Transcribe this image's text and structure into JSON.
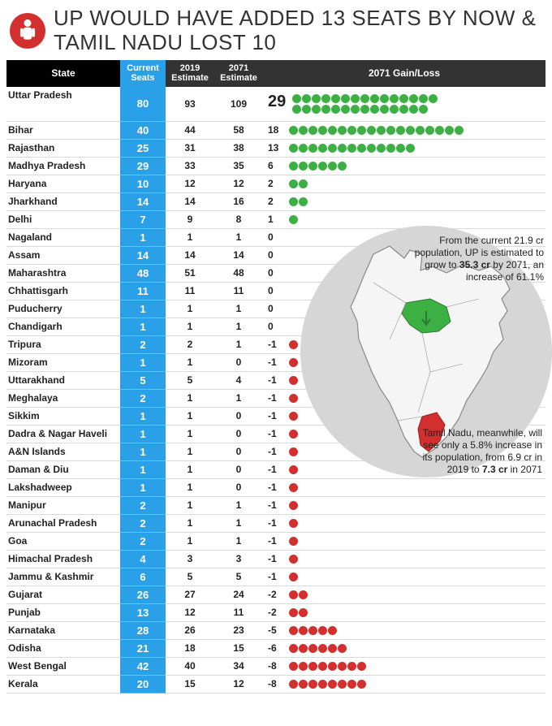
{
  "headline": "UP WOULD HAVE ADDED 13 SEATS BY NOW & TAMIL NADU LOST 10",
  "columns": {
    "state": "State",
    "current": "Current\nSeats",
    "e2019": "2019\nEstimate",
    "e2071": "2071\nEstimate",
    "gain": "2071 Gain/Loss"
  },
  "colors": {
    "gain_dot": "#3cb043",
    "loss_dot": "#d32f2f",
    "current_col_bg": "#2aa0e8",
    "header_dark": "#333333",
    "header_black": "#000000",
    "map_bg": "#d6d6d6",
    "map_land": "#f5f5f5",
    "map_up_fill": "#3cb043",
    "map_tn_fill": "#d32f2f"
  },
  "annotations": {
    "up": "From the current 21.9 cr population, UP is estimated to grow to <b>35.3 cr</b> by 2071, an increase of  61.1%",
    "tn": "Tamil Nadu, meanwhile, will see only a 5.8% increase in its population, from 6.9 cr in 2019 to <b>7.3 cr</b> in 2071"
  },
  "rows": [
    {
      "state": "Uttar Pradesh",
      "cur": 80,
      "e19": 93,
      "e71": 109,
      "gl": 29
    },
    {
      "state": "Bihar",
      "cur": 40,
      "e19": 44,
      "e71": 58,
      "gl": 18
    },
    {
      "state": "Rajasthan",
      "cur": 25,
      "e19": 31,
      "e71": 38,
      "gl": 13
    },
    {
      "state": "Madhya Pradesh",
      "cur": 29,
      "e19": 33,
      "e71": 35,
      "gl": 6
    },
    {
      "state": "Haryana",
      "cur": 10,
      "e19": 12,
      "e71": 12,
      "gl": 2
    },
    {
      "state": "Jharkhand",
      "cur": 14,
      "e19": 14,
      "e71": 16,
      "gl": 2
    },
    {
      "state": "Delhi",
      "cur": 7,
      "e19": 9,
      "e71": 8,
      "gl": 1
    },
    {
      "state": "Nagaland",
      "cur": 1,
      "e19": 1,
      "e71": 1,
      "gl": 0
    },
    {
      "state": "Assam",
      "cur": 14,
      "e19": 14,
      "e71": 14,
      "gl": 0
    },
    {
      "state": "Maharashtra",
      "cur": 48,
      "e19": 51,
      "e71": 48,
      "gl": 0
    },
    {
      "state": "Chhattisgarh",
      "cur": 11,
      "e19": 11,
      "e71": 11,
      "gl": 0
    },
    {
      "state": "Puducherry",
      "cur": 1,
      "e19": 1,
      "e71": 1,
      "gl": 0
    },
    {
      "state": "Chandigarh",
      "cur": 1,
      "e19": 1,
      "e71": 1,
      "gl": 0
    },
    {
      "state": "Tripura",
      "cur": 2,
      "e19": 2,
      "e71": 1,
      "gl": -1
    },
    {
      "state": "Mizoram",
      "cur": 1,
      "e19": 1,
      "e71": 0,
      "gl": -1
    },
    {
      "state": "Uttarakhand",
      "cur": 5,
      "e19": 5,
      "e71": 4,
      "gl": -1
    },
    {
      "state": "Meghalaya",
      "cur": 2,
      "e19": 1,
      "e71": 1,
      "gl": -1
    },
    {
      "state": "Sikkim",
      "cur": 1,
      "e19": 1,
      "e71": 0,
      "gl": -1
    },
    {
      "state": "Dadra & Nagar Haveli",
      "cur": 1,
      "e19": 1,
      "e71": 0,
      "gl": -1
    },
    {
      "state": "A&N Islands",
      "cur": 1,
      "e19": 1,
      "e71": 0,
      "gl": -1
    },
    {
      "state": "Daman & Diu",
      "cur": 1,
      "e19": 1,
      "e71": 0,
      "gl": -1
    },
    {
      "state": "Lakshadweep",
      "cur": 1,
      "e19": 1,
      "e71": 0,
      "gl": -1
    },
    {
      "state": "Manipur",
      "cur": 2,
      "e19": 1,
      "e71": 1,
      "gl": -1
    },
    {
      "state": "Arunachal Pradesh",
      "cur": 2,
      "e19": 1,
      "e71": 1,
      "gl": -1
    },
    {
      "state": "Goa",
      "cur": 2,
      "e19": 1,
      "e71": 1,
      "gl": -1
    },
    {
      "state": "Himachal Pradesh",
      "cur": 4,
      "e19": 3,
      "e71": 3,
      "gl": -1
    },
    {
      "state": "Jammu & Kashmir",
      "cur": 6,
      "e19": 5,
      "e71": 5,
      "gl": -1
    },
    {
      "state": "Gujarat",
      "cur": 26,
      "e19": 27,
      "e71": 24,
      "gl": -2
    },
    {
      "state": "Punjab",
      "cur": 13,
      "e19": 12,
      "e71": 11,
      "gl": -2
    },
    {
      "state": "Karnataka",
      "cur": 28,
      "e19": 26,
      "e71": 23,
      "gl": -5
    },
    {
      "state": "Odisha",
      "cur": 21,
      "e19": 18,
      "e71": 15,
      "gl": -6
    },
    {
      "state": "West Bengal",
      "cur": 42,
      "e19": 40,
      "e71": 34,
      "gl": -8
    },
    {
      "state": "Kerala",
      "cur": 20,
      "e19": 15,
      "e71": 12,
      "gl": -8
    }
  ]
}
